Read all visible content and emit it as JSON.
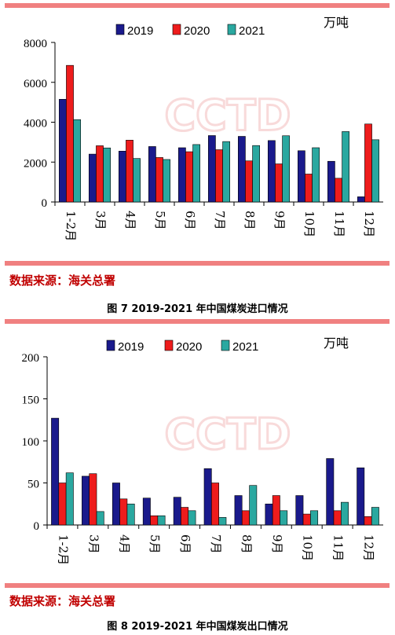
{
  "chart_data": [
    {
      "type": "bar",
      "title": "",
      "unit": "万吨",
      "categories": [
        "1-2月",
        "3月",
        "4月",
        "5月",
        "6月",
        "7月",
        "8月",
        "9月",
        "10月",
        "11月",
        "12月"
      ],
      "series": [
        {
          "name": "2019",
          "color": "#1a1a8c",
          "values": [
            5150,
            2400,
            2550,
            2780,
            2720,
            3330,
            3290,
            3080,
            2570,
            2040,
            260
          ]
        },
        {
          "name": "2020",
          "color": "#ee1c1c",
          "values": [
            6850,
            2820,
            3100,
            2230,
            2520,
            2620,
            2060,
            1910,
            1400,
            1190,
            3910
          ]
        },
        {
          "name": "2021",
          "color": "#2aa8a0",
          "values": [
            4130,
            2710,
            2180,
            2130,
            2880,
            3030,
            2830,
            3320,
            2720,
            3530,
            3120
          ]
        }
      ],
      "ylim": [
        0,
        8000
      ],
      "yticks": [
        0,
        2000,
        4000,
        6000,
        8000
      ],
      "legend": "top",
      "grid": false,
      "watermark": "CCTD",
      "source": "数据来源：海关总署",
      "caption": "图 7   2019-2021 年中国煤炭进口情况"
    },
    {
      "type": "bar",
      "title": "",
      "unit": "万吨",
      "categories": [
        "1-2月",
        "3月",
        "4月",
        "5月",
        "6月",
        "7月",
        "8月",
        "9月",
        "10月",
        "11月",
        "12月"
      ],
      "series": [
        {
          "name": "2019",
          "color": "#1a1a8c",
          "values": [
            127,
            58,
            50,
            32,
            33,
            67,
            35,
            25,
            35,
            79,
            68
          ]
        },
        {
          "name": "2020",
          "color": "#ee1c1c",
          "values": [
            50,
            61,
            31,
            11,
            21,
            50,
            17,
            35,
            13,
            17,
            10
          ]
        },
        {
          "name": "2021",
          "color": "#2aa8a0",
          "values": [
            62,
            16,
            25,
            11,
            17,
            9,
            47,
            17,
            17,
            27,
            21
          ]
        }
      ],
      "ylim": [
        0,
        200
      ],
      "yticks": [
        0,
        50,
        100,
        150,
        200
      ],
      "legend": "top",
      "grid": false,
      "watermark": "CCTD",
      "source": "数据来源：海关总署",
      "caption": "图 8   2019-2021 年中国煤炭出口情况"
    }
  ]
}
